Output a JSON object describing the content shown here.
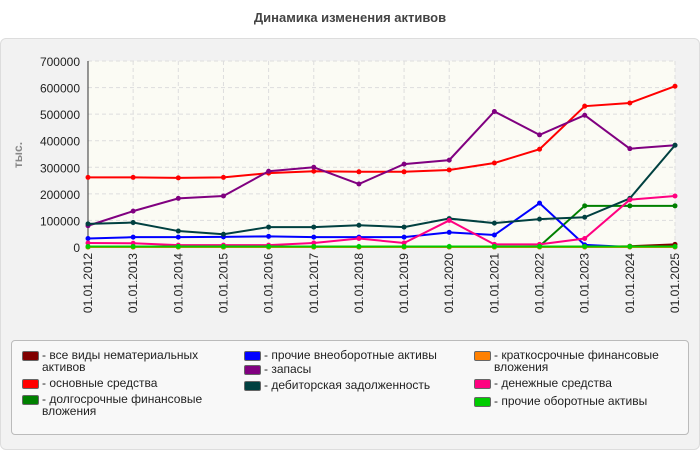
{
  "chart_data": {
    "type": "line",
    "title": "Динамика изменения активов",
    "ylabel": "тыс.",
    "ylim": [
      0,
      700000
    ],
    "yticks": [
      "0",
      "100000",
      "200000",
      "300000",
      "400000",
      "500000",
      "600000",
      "700000"
    ],
    "grid": true,
    "legend_position": "bottom",
    "categories": [
      "01.01.2012",
      "01.01.2013",
      "01.01.2014",
      "01.01.2015",
      "01.01.2016",
      "01.01.2017",
      "01.01.2018",
      "01.01.2019",
      "01.01.2020",
      "01.01.2021",
      "01.01.2022",
      "01.01.2023",
      "01.01.2024",
      "01.01.2025"
    ],
    "series": [
      {
        "name": "- все виды нематериальных активов",
        "color": "#800000",
        "values": [
          0,
          0,
          0,
          0,
          0,
          0,
          0,
          0,
          0,
          0,
          0,
          0,
          3000,
          10000
        ]
      },
      {
        "name": "- основные средства",
        "color": "#ff0000",
        "values": [
          262000,
          262000,
          260000,
          262000,
          278000,
          285000,
          283000,
          283000,
          290000,
          316000,
          368000,
          530000,
          542000,
          605000
        ]
      },
      {
        "name": "- долгосрочные финансовые вложения",
        "color": "#008000",
        "values": [
          0,
          0,
          0,
          0,
          0,
          0,
          0,
          0,
          0,
          0,
          3000,
          155000,
          155000,
          155000
        ]
      },
      {
        "name": "- прочие внеоборотные активы",
        "color": "#0000ff",
        "values": [
          32000,
          37000,
          37000,
          38000,
          40000,
          37000,
          37000,
          37000,
          55000,
          45000,
          165000,
          8000,
          0,
          0
        ]
      },
      {
        "name": "- запасы",
        "color": "#800080",
        "values": [
          80000,
          135000,
          183000,
          192000,
          285000,
          300000,
          237000,
          312000,
          327000,
          510000,
          422000,
          496000,
          370000,
          383000
        ]
      },
      {
        "name": "- дебиторская задолженность",
        "color": "#004040",
        "values": [
          87000,
          92000,
          60000,
          48000,
          75000,
          75000,
          82000,
          75000,
          107000,
          90000,
          105000,
          112000,
          183000,
          383000
        ]
      },
      {
        "name": "- краткосрочные финансовые вложения",
        "color": "#ff8000",
        "values": [
          0,
          0,
          0,
          0,
          0,
          0,
          0,
          0,
          0,
          0,
          0,
          0,
          0,
          0
        ]
      },
      {
        "name": "- денежные средства",
        "color": "#ff0080",
        "values": [
          15000,
          14000,
          7000,
          7000,
          7000,
          15000,
          32000,
          15000,
          100000,
          10000,
          10000,
          32000,
          178000,
          192000
        ]
      },
      {
        "name": "- прочие оборотные активы",
        "color": "#00cc00",
        "values": [
          2000,
          2000,
          2000,
          2000,
          2000,
          2000,
          2000,
          2000,
          2000,
          2000,
          2000,
          2000,
          2000,
          2000
        ]
      }
    ]
  }
}
